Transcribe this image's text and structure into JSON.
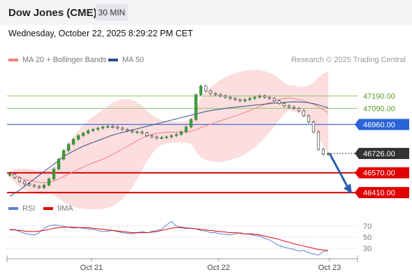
{
  "header": {
    "title": "Dow Jones (CME)",
    "timeframe": "30 MIN"
  },
  "date_line": "Wednesday, October 22, 2025 8:29:22 PM CET",
  "legend": {
    "main": [
      {
        "name": "MA 20 + Bollinger Bands",
        "color": "#f08080"
      },
      {
        "name": "MA 50",
        "color": "#2b4f8a"
      }
    ],
    "rsi": [
      {
        "name": "RSI",
        "color": "#5b7fd6"
      },
      {
        "name": "9MA",
        "color": "#e00000"
      }
    ]
  },
  "credit": "Research © 2025 Trading Central",
  "chart_data": {
    "type": "line",
    "price_range": [
      46360,
      47430
    ],
    "x_labels": [
      "Oct 21",
      "Oct 22",
      "Oct 23"
    ],
    "levels": [
      {
        "value": 47190.0,
        "label": "47190.00",
        "kind": "resistance",
        "color": "#8fc46a",
        "label_color": "#5a9a2a"
      },
      {
        "value": 47090.0,
        "label": "47090.00",
        "kind": "resistance",
        "color": "#8fc46a",
        "label_color": "#5a9a2a"
      },
      {
        "value": 46960.0,
        "label": "46960.00",
        "kind": "pivot",
        "color": "#4a78d8",
        "label_bg": "#2a64d8"
      },
      {
        "value": 46726.0,
        "label": "46726.00",
        "kind": "last",
        "label_bg": "#333333"
      },
      {
        "value": 46570.0,
        "label": "46570.00",
        "kind": "support",
        "color": "#d40000",
        "label_bg": "#e00000"
      },
      {
        "value": 46410.0,
        "label": "46410.00",
        "kind": "support",
        "color": "#d40000",
        "label_bg": "#e00000"
      }
    ],
    "series": [
      {
        "name": "Price",
        "values": [
          46560,
          46530,
          46500,
          46480,
          46470,
          46460,
          46450,
          46470,
          46520,
          46600,
          46680,
          46750,
          46800,
          46840,
          46870,
          46890,
          46910,
          46920,
          46930,
          46940,
          46945,
          46940,
          46930,
          46920,
          46910,
          46900,
          46900,
          46890,
          46870,
          46860,
          46850,
          46855,
          46860,
          46870,
          46880,
          46900,
          46940,
          47000,
          47200,
          47270,
          47230,
          47210,
          47200,
          47190,
          47180,
          47170,
          47160,
          47150,
          47160,
          47170,
          47180,
          47190,
          47180,
          47170,
          47150,
          47130,
          47110,
          47100,
          47090,
          47070,
          47030,
          46980,
          46900,
          46760,
          46720,
          46726
        ]
      },
      {
        "name": "MA 50",
        "values": [
          46380,
          46405,
          46430,
          46460,
          46490,
          46520,
          46550,
          46580,
          46610,
          46640,
          46670,
          46700,
          46725,
          46745,
          46765,
          46785,
          46800,
          46815,
          46830,
          46845,
          46860,
          46875,
          46885,
          46895,
          46905,
          46915,
          46925,
          46935,
          46945,
          46955,
          46965,
          46975,
          46985,
          46995,
          47005,
          47015,
          47025,
          47035,
          47045,
          47055,
          47065,
          47072,
          47078,
          47084,
          47090,
          47095,
          47100,
          47104,
          47108,
          47112,
          47116,
          47120,
          47124,
          47128,
          47132,
          47135,
          47138,
          47141,
          47143,
          47142,
          47140,
          47136,
          47128,
          47118,
          47105,
          47095
        ]
      },
      {
        "name": "RSI",
        "values": [
          62,
          64,
          60,
          57,
          55,
          54,
          58,
          66,
          70,
          72,
          71,
          69,
          68,
          66,
          67,
          66,
          65,
          64,
          62,
          60,
          61,
          62,
          60,
          58,
          57,
          56,
          58,
          60,
          58,
          60,
          62,
          64,
          72,
          78,
          70,
          68,
          67,
          66,
          65,
          62,
          61,
          58,
          58,
          56,
          55,
          54,
          56,
          58,
          56,
          55,
          53,
          52,
          48,
          45,
          40,
          35,
          32,
          30,
          28,
          25,
          26,
          22,
          20,
          18,
          24,
          26
        ]
      },
      {
        "name": "9MA",
        "values": [
          64,
          63,
          62,
          61,
          60,
          60,
          61,
          62,
          64,
          66,
          67,
          68,
          68,
          68,
          67,
          67,
          67,
          66,
          65,
          64,
          63,
          62,
          61,
          60,
          59,
          58,
          58,
          58,
          58,
          59,
          60,
          62,
          64,
          66,
          67,
          67,
          66,
          66,
          65,
          64,
          63,
          62,
          61,
          60,
          59,
          58,
          58,
          57,
          56,
          56,
          55,
          54,
          52,
          50,
          48,
          46,
          43,
          41,
          38,
          36,
          34,
          32,
          30,
          28,
          27,
          26
        ]
      }
    ],
    "rsi_levels": [
      {
        "value": 70,
        "label": "70"
      },
      {
        "value": 50,
        "label": "50"
      },
      {
        "value": 30,
        "label": "30"
      }
    ]
  }
}
